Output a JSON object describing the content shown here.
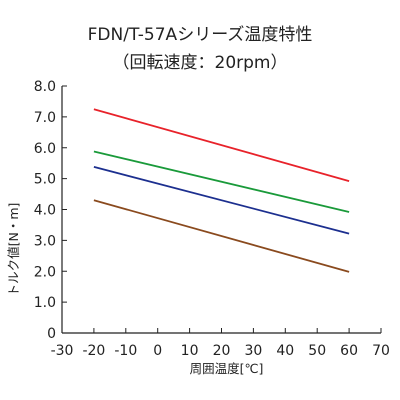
{
  "chart_data": {
    "type": "line",
    "title": "FDN/T-57Aシリーズ温度特性",
    "subtitle": "（回転速度：20rpm）",
    "xlabel": "周囲温度[℃]",
    "ylabel": "トルク値[N・m]",
    "xlim": [
      -30,
      70
    ],
    "ylim": [
      0,
      8.0
    ],
    "x_ticks": [
      "-30",
      "-20",
      "-10",
      "0",
      "10",
      "20",
      "30",
      "40",
      "50",
      "60",
      "70"
    ],
    "y_ticks": [
      "0",
      "1.0",
      "2.0",
      "3.0",
      "4.0",
      "5.0",
      "6.0",
      "7.0",
      "8.0"
    ],
    "grid": false,
    "series": [
      {
        "color": "#e8222a",
        "x": [
          -20,
          60
        ],
        "y": [
          7.25,
          4.92
        ]
      },
      {
        "color": "#1a9a3a",
        "x": [
          -20,
          60
        ],
        "y": [
          5.88,
          3.92
        ]
      },
      {
        "color": "#1c2f8f",
        "x": [
          -20,
          60
        ],
        "y": [
          5.38,
          3.22
        ]
      },
      {
        "color": "#8a4a1e",
        "x": [
          -20,
          60
        ],
        "y": [
          4.3,
          1.98
        ]
      }
    ]
  }
}
